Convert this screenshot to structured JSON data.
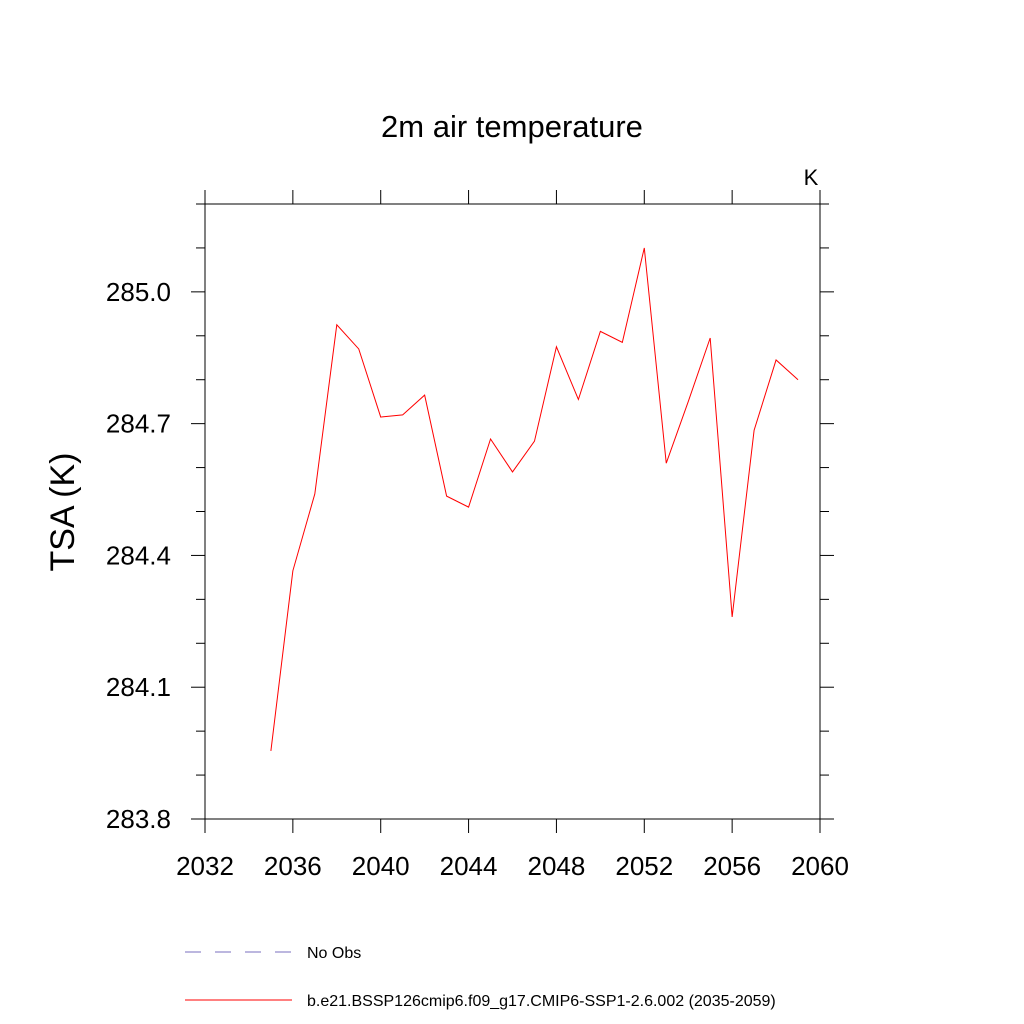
{
  "chart_data": {
    "type": "line",
    "title": "2m air temperature",
    "units_label": "K",
    "xlabel": "",
    "ylabel": "TSA  (K)",
    "xlim": [
      2032,
      2060
    ],
    "ylim": [
      283.8,
      285.2
    ],
    "xticks": [
      2032,
      2036,
      2040,
      2044,
      2048,
      2052,
      2056,
      2060
    ],
    "xtick_labels": [
      "2032",
      "2036",
      "2040",
      "2044",
      "2048",
      "2052",
      "2056",
      "2060"
    ],
    "yticks": [
      283.8,
      284.1,
      284.4,
      284.7,
      285.0
    ],
    "ytick_labels": [
      "283.8",
      "284.1",
      "284.4",
      "284.7",
      "285.0"
    ],
    "grid": false,
    "legend_position": "bottom-left",
    "series": [
      {
        "name": "b.e21.BSSP126cmip6.f09_g17.CMIP6-SSP1-2.6.002 (2035-2059)",
        "color": "#ff0000",
        "style": "solid",
        "x": [
          2035,
          2036,
          2037,
          2038,
          2039,
          2040,
          2041,
          2042,
          2043,
          2044,
          2045,
          2046,
          2047,
          2048,
          2049,
          2050,
          2051,
          2052,
          2053,
          2054,
          2055,
          2056,
          2057,
          2058,
          2059
        ],
        "y": [
          283.955,
          284.365,
          284.54,
          284.925,
          284.87,
          284.715,
          284.72,
          284.765,
          284.535,
          284.51,
          284.665,
          284.59,
          284.66,
          284.875,
          284.755,
          284.91,
          284.885,
          285.1,
          284.61,
          284.75,
          284.895,
          284.26,
          284.685,
          284.845,
          284.8
        ]
      },
      {
        "name": "No Obs",
        "color": "#7a6fbf",
        "style": "dashed",
        "x": [],
        "y": []
      }
    ]
  }
}
